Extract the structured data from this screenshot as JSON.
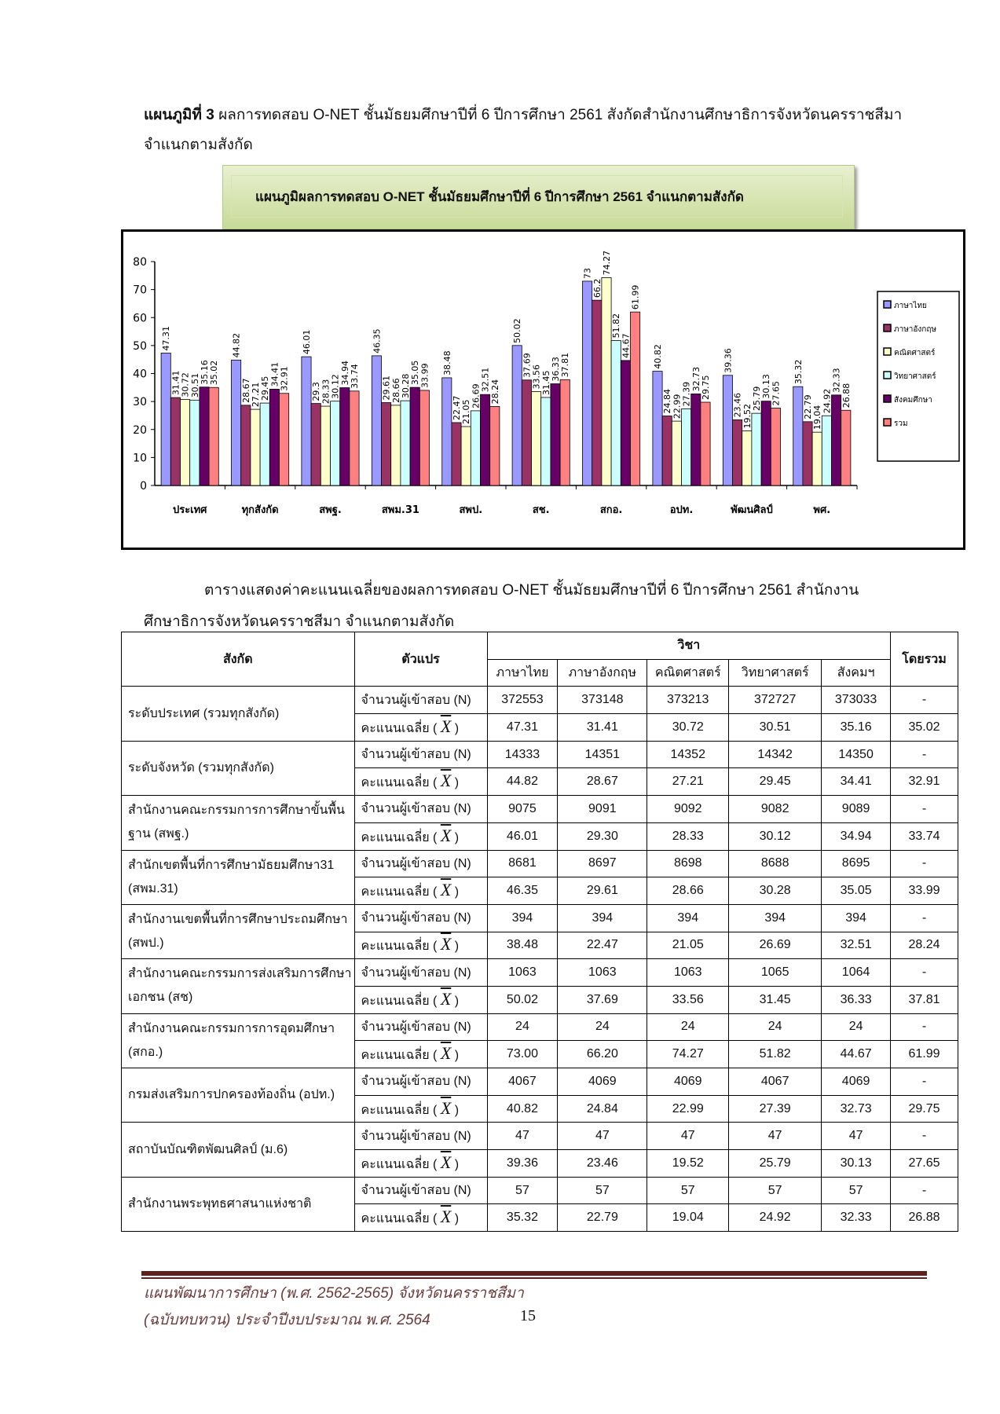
{
  "heading": {
    "bold": "แผนภูมิที่ 3",
    "text": " ผลการทดสอบ O-NET ชั้นมัธยมศึกษาปีที่ 6 ปีการศึกษา 2561 สังกัดสำนักงานศึกษาธิการจังหวัดนครราชสีมา จำแนกตามสังกัด"
  },
  "chart_title": "แผนภูมิผลการทดสอบ O-NET ชั้นมัธยมศึกษาปีที่ 6 ปีการศึกษา 2561 จำแนกตามสังกัด",
  "chart_data": {
    "type": "bar",
    "title": "แผนภูมิผลการทดสอบ O-NET ชั้นมัธยมศึกษาปีที่ 6 ปีการศึกษา 2561 จำแนกตามสังกัด",
    "categories": [
      "ประเทศ",
      "ทุกสังกัด",
      "สพฐ.",
      "สพม.31",
      "สพป.",
      "สช.",
      "สกอ.",
      "อปท.",
      "พัฒนศิลป์",
      "พศ."
    ],
    "ylim": [
      0,
      80
    ],
    "yticks": [
      0,
      10,
      20,
      30,
      40,
      50,
      60,
      70,
      80
    ],
    "grid": false,
    "legend": "right",
    "series": [
      {
        "name": "ภาษาไทย",
        "color": "#9999ff",
        "values": [
          47.31,
          44.82,
          46.01,
          46.35,
          38.48,
          50.02,
          73,
          40.82,
          39.36,
          35.32
        ]
      },
      {
        "name": "ภาษาอังกฤษ",
        "color": "#993366",
        "values": [
          31.41,
          28.67,
          29.3,
          29.61,
          22.47,
          37.69,
          66.2,
          24.84,
          23.46,
          22.79
        ]
      },
      {
        "name": "คณิตศาสตร์",
        "color": "#ffffcc",
        "values": [
          30.72,
          27.21,
          28.33,
          28.66,
          21.05,
          33.56,
          74.27,
          22.99,
          19.52,
          19.04
        ]
      },
      {
        "name": "วิทยาศาสตร์",
        "color": "#ccffff",
        "values": [
          30.51,
          29.45,
          30.12,
          30.28,
          26.69,
          31.45,
          51.82,
          27.39,
          25.79,
          24.92
        ]
      },
      {
        "name": "สังคมศึกษา",
        "color": "#660066",
        "values": [
          35.16,
          34.41,
          34.94,
          35.05,
          32.51,
          36.33,
          44.67,
          32.73,
          30.13,
          32.33
        ]
      },
      {
        "name": "รวม",
        "color": "#ff8080",
        "values": [
          35.02,
          32.91,
          33.74,
          33.99,
          28.24,
          37.81,
          61.99,
          29.75,
          27.65,
          26.88
        ]
      }
    ]
  },
  "caption": {
    "line1": "ตารางแสดงค่าคะแนนเฉลี่ยของผลการทดสอบ O-NET   ชั้นมัธยมศึกษาปีที่ 6 ปีการศึกษา 2561 สำนักงาน",
    "line2": "ศึกษาธิการจังหวัดนครราชสีมา จำแนกตามสังกัด"
  },
  "table": {
    "headers": {
      "org": "สังกัด",
      "var": "ตัวแปร",
      "subject": "วิชา",
      "overall": "โดยรวม",
      "subjects": [
        "ภาษาไทย",
        "ภาษาอังกฤษ",
        "คณิตศาสตร์",
        "วิทยาศาสตร์",
        "สังคมฯ"
      ]
    },
    "label_n": "จำนวนผู้เข้าสอบ (N)",
    "label_mean": "คะแนนเฉลี่ย (",
    "label_mean_symbol": "X",
    "label_mean_close": ")",
    "rows": [
      {
        "org": "ระดับประเทศ (รวมทุกสังกัด)",
        "n": [
          "372553",
          "373148",
          "373213",
          "372727",
          "373033",
          "-"
        ],
        "mean": [
          "47.31",
          "31.41",
          "30.72",
          "30.51",
          "35.16",
          "35.02"
        ]
      },
      {
        "org": "ระดับจังหวัด (รวมทุกสังกัด)",
        "n": [
          "14333",
          "14351",
          "14352",
          "14342",
          "14350",
          "-"
        ],
        "mean": [
          "44.82",
          "28.67",
          "27.21",
          "29.45",
          "34.41",
          "32.91"
        ]
      },
      {
        "org": "สำนักงานคณะกรรมการการศึกษาขั้นพื้นฐาน (สพฐ.)",
        "n": [
          "9075",
          "9091",
          "9092",
          "9082",
          "9089",
          "-"
        ],
        "mean": [
          "46.01",
          "29.30",
          "28.33",
          "30.12",
          "34.94",
          "33.74"
        ]
      },
      {
        "org": "สำนักเขตพื้นที่การศึกษามัธยมศึกษา31 (สพม.31)",
        "n": [
          "8681",
          "8697",
          "8698",
          "8688",
          "8695",
          "-"
        ],
        "mean": [
          "46.35",
          "29.61",
          "28.66",
          "30.28",
          "35.05",
          "33.99"
        ]
      },
      {
        "org": "สำนักงานเขตพื้นที่การศึกษาประถมศึกษา (สพป.)",
        "n": [
          "394",
          "394",
          "394",
          "394",
          "394",
          "-"
        ],
        "mean": [
          "38.48",
          "22.47",
          "21.05",
          "26.69",
          "32.51",
          "28.24"
        ]
      },
      {
        "org": "สำนักงานคณะกรรมการส่งเสริมการศึกษาเอกชน (สช)",
        "n": [
          "1063",
          "1063",
          "1063",
          "1065",
          "1064",
          "-"
        ],
        "mean": [
          "50.02",
          "37.69",
          "33.56",
          "31.45",
          "36.33",
          "37.81"
        ]
      },
      {
        "org": "สำนักงานคณะกรรมการการอุดมศึกษา (สกอ.)",
        "n": [
          "24",
          "24",
          "24",
          "24",
          "24",
          "-"
        ],
        "mean": [
          "73.00",
          "66.20",
          "74.27",
          "51.82",
          "44.67",
          "61.99"
        ]
      },
      {
        "org": "กรมส่งเสริมการปกครองท้องถิ่น (อปท.)",
        "n": [
          "4067",
          "4069",
          "4069",
          "4067",
          "4069",
          "-"
        ],
        "mean": [
          "40.82",
          "24.84",
          "22.99",
          "27.39",
          "32.73",
          "29.75"
        ]
      },
      {
        "org": "สถาบันบัณฑิตพัฒนศิลป์ (ม.6)",
        "n": [
          "47",
          "47",
          "47",
          "47",
          "47",
          "-"
        ],
        "mean": [
          "39.36",
          "23.46",
          "19.52",
          "25.79",
          "30.13",
          "27.65"
        ]
      },
      {
        "org": "สำนักงานพระพุทธศาสนาแห่งชาติ",
        "n": [
          "57",
          "57",
          "57",
          "57",
          "57",
          "-"
        ],
        "mean": [
          "35.32",
          "22.79",
          "19.04",
          "24.92",
          "32.33",
          "26.88"
        ]
      }
    ]
  },
  "footer": {
    "line1": "แผนพัฒนาการศึกษา (พ.ศ. 2562-2565) จังหวัดนครราชสีมา",
    "line2": "(ฉบับทบทวน) ประจำปีงบประมาณ พ.ศ. 2564",
    "page": "15"
  }
}
